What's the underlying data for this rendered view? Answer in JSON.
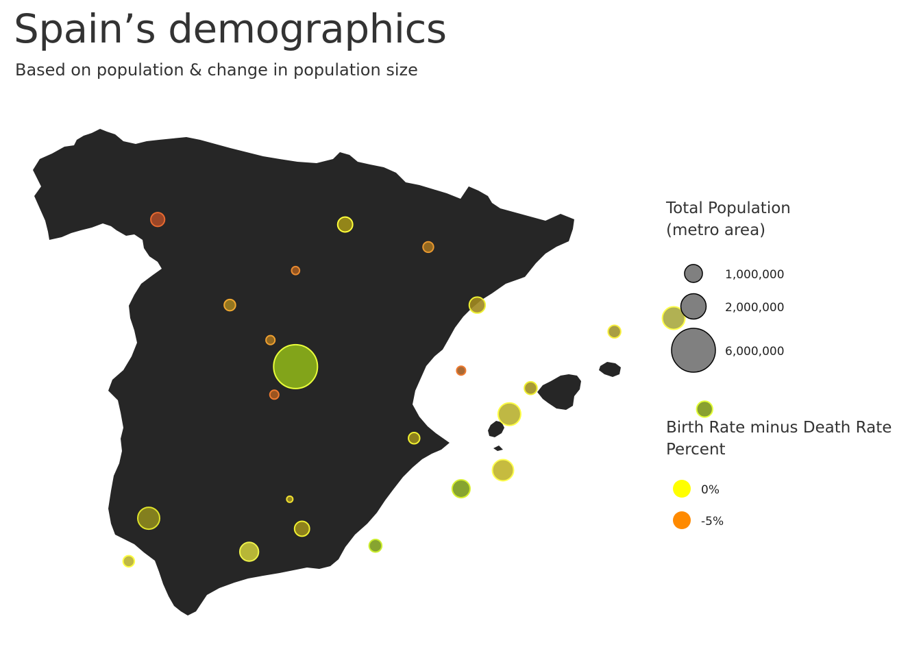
{
  "title": "Spain’s demographics",
  "subtitle": "Based on population & change in population size",
  "colors": {
    "land": "#262626",
    "zero": "#ffff00",
    "minus5": "#ff8a00",
    "size_key": "#808080"
  },
  "legend": {
    "size": {
      "title_line1": "Total Population",
      "title_line2": "(metro area)",
      "items": [
        {
          "label": "1,000,000",
          "value": 1000000
        },
        {
          "label": "2,000,000",
          "value": 2000000
        },
        {
          "label": "6,000,000",
          "value": 6000000
        }
      ]
    },
    "color": {
      "title_line1": "Birth Rate minus Death Rate",
      "title_line2": "Percent",
      "items": [
        {
          "label": "0%",
          "color": "#ffff00"
        },
        {
          "label": "-5%",
          "color": "#ff8a00"
        }
      ]
    }
  },
  "chart_data": {
    "type": "scatter",
    "region": "Spain",
    "size_variable": "Total Population",
    "color_variable": "Birth Rate minus Death Rate Percent",
    "cities": [
      {
        "lon": -3.7,
        "lat": 40.42,
        "pop": 6000000,
        "fill": "#8db31a",
        "stroke": "#eaff3a"
      },
      {
        "lon": 2.17,
        "lat": 41.39,
        "pop": 1600000,
        "fill": "#a8a840",
        "stroke": "#ffff4a"
      },
      {
        "lon": -0.38,
        "lat": 39.47,
        "pop": 1600000,
        "fill": "#b8b030",
        "stroke": "#ffff44"
      },
      {
        "lon": -5.98,
        "lat": 37.39,
        "pop": 1500000,
        "fill": "#8e8a1e",
        "stroke": "#dfe32a"
      },
      {
        "lon": -4.42,
        "lat": 36.72,
        "pop": 1100000,
        "fill": "#c8c63a",
        "stroke": "#f0f44a"
      },
      {
        "lon": -1.13,
        "lat": 37.98,
        "pop": 1000000,
        "fill": "#7a9a1a",
        "stroke": "#d8f030"
      },
      {
        "lon": 2.65,
        "lat": 39.57,
        "pop": 800000,
        "fill": "#7c9618",
        "stroke": "#e4ff3a"
      },
      {
        "lon": -2.93,
        "lat": 43.26,
        "pop": 700000,
        "fill": "#a09018",
        "stroke": "#ffff3a"
      },
      {
        "lon": -0.48,
        "lat": 38.35,
        "pop": 1400000,
        "fill": "#c0b42a",
        "stroke": "#ffff50"
      },
      {
        "lon": -0.88,
        "lat": 41.65,
        "pop": 800000,
        "fill": "#a08820",
        "stroke": "#eef032"
      },
      {
        "lon": -3.6,
        "lat": 37.18,
        "pop": 700000,
        "fill": "#9a8c1c",
        "stroke": "#f0f030"
      },
      {
        "lon": -8.72,
        "lat": 42.24,
        "pop": 800000,
        "fill": "#a08b18",
        "stroke": "#ffee30"
      },
      {
        "lon": 1.25,
        "lat": 41.12,
        "pop": 500000,
        "fill": "#a09430",
        "stroke": "#f8f040"
      },
      {
        "lon": -0.05,
        "lat": 39.99,
        "pop": 500000,
        "fill": "#a09020",
        "stroke": "#f0f030"
      },
      {
        "lon": -2.46,
        "lat": 36.84,
        "pop": 500000,
        "fill": "#7a9a1a",
        "stroke": "#ccee30"
      },
      {
        "lon": -6.29,
        "lat": 36.53,
        "pop": 400000,
        "fill": "#b8b030",
        "stroke": "#ffff44"
      },
      {
        "lon": -1.86,
        "lat": 38.99,
        "pop": 400000,
        "fill": "#9a8c1c",
        "stroke": "#f0f030"
      },
      {
        "lon": -5.84,
        "lat": 43.36,
        "pop": 600000,
        "fill": "#a84a28",
        "stroke": "#e86a30"
      },
      {
        "lon": -4.72,
        "lat": 41.65,
        "pop": 400000,
        "fill": "#a08020",
        "stroke": "#f0a830"
      },
      {
        "lon": -1.64,
        "lat": 42.81,
        "pop": 350000,
        "fill": "#a07020",
        "stroke": "#e89830"
      },
      {
        "lon": -8.41,
        "lat": 43.36,
        "pop": 450000,
        "fill": "#a03020",
        "stroke": "#e03a20"
      },
      {
        "lon": -8.54,
        "lat": 42.88,
        "pop": 350000,
        "fill": "#a02818",
        "stroke": "#dd3018"
      },
      {
        "lon": -3.7,
        "lat": 42.34,
        "pop": 200000,
        "fill": "#a05a20",
        "stroke": "#e88a30"
      },
      {
        "lon": -4.09,
        "lat": 40.95,
        "pop": 250000,
        "fill": "#a07020",
        "stroke": "#f0a030"
      },
      {
        "lon": -4.03,
        "lat": 39.86,
        "pop": 250000,
        "fill": "#a85a20",
        "stroke": "#ee7a30"
      },
      {
        "lon": -1.13,
        "lat": 40.34,
        "pop": 250000,
        "fill": "#a05a20",
        "stroke": "#ee7a30"
      },
      {
        "lon": -3.79,
        "lat": 37.77,
        "pop": 120000,
        "fill": "#a09020",
        "stroke": "#f0e030"
      }
    ]
  }
}
